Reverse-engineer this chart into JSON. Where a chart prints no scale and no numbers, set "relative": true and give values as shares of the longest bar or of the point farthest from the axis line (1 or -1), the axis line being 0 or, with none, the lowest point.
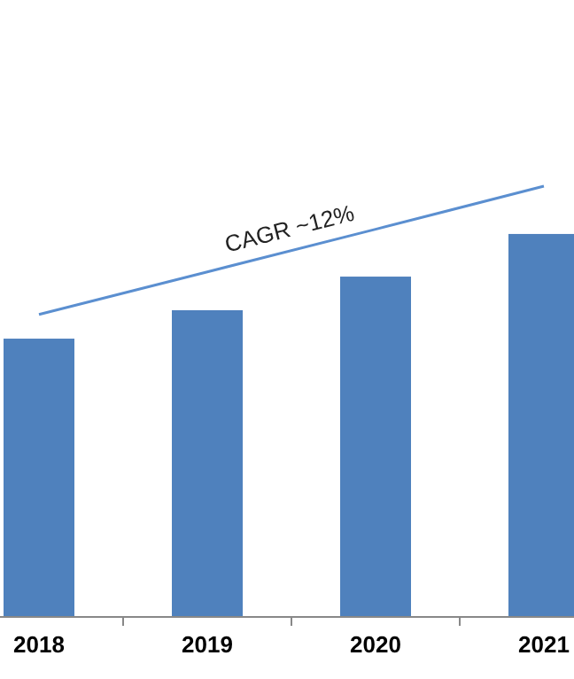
{
  "chart_data": {
    "type": "bar",
    "relative": true,
    "categories": [
      "2018",
      "2019",
      "2020",
      "2021"
    ],
    "series": [
      {
        "color": "#4f81bd",
        "values": [
          0.646,
          0.712,
          0.79,
          0.889
        ]
      },
      {
        "type": "line",
        "name": "CAGR ~12%",
        "color": "#5b8fd0",
        "values": [
          0.702,
          0.801,
          0.9,
          1
        ]
      }
    ]
  }
}
